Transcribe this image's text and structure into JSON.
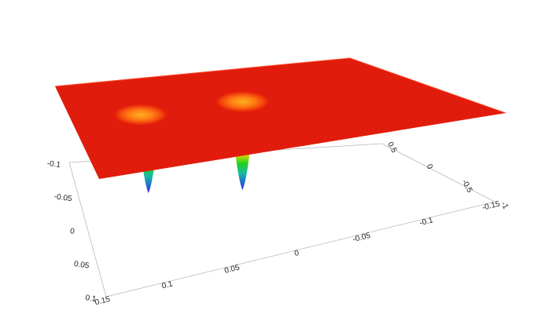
{
  "chart_data": {
    "type": "surface",
    "title": "",
    "grid": false,
    "x_axis": {
      "ticks": [
        0.15,
        0.1,
        0.05,
        0,
        -0.05,
        -0.1,
        -0.15
      ],
      "labels": [
        "0.15",
        "0.1",
        "0.05",
        "0",
        "-0.05",
        "-0.1",
        "-0.15"
      ],
      "range": [
        0.15,
        -0.15
      ]
    },
    "y_axis": {
      "ticks": [
        -0.1,
        -0.05,
        0,
        0.05,
        0.1
      ],
      "labels": [
        "-0.1",
        "-0.05",
        "0",
        "0.05",
        "0.1"
      ],
      "range": [
        -0.1,
        0.1
      ]
    },
    "z_axis": {
      "ticks": [
        0.5,
        0,
        -0.5,
        -1
      ],
      "labels": [
        "0.5",
        "0",
        "-0.5",
        "-1"
      ],
      "range": [
        -1,
        0.5
      ]
    },
    "surface": {
      "baseline_z": 0.5,
      "wells": [
        {
          "x": 0.09,
          "y": -0.02,
          "depth_z": -1
        },
        {
          "x": 0.0,
          "y": -0.02,
          "depth_z": -1
        }
      ]
    },
    "colors": {
      "surface_top": "#e41c0c",
      "well_orange": "#ff8c00",
      "well_yellow": "#ffe100",
      "well_green": "#1fd11f",
      "well_blue": "#2a2aee",
      "axis": "#b8b8b8"
    }
  }
}
